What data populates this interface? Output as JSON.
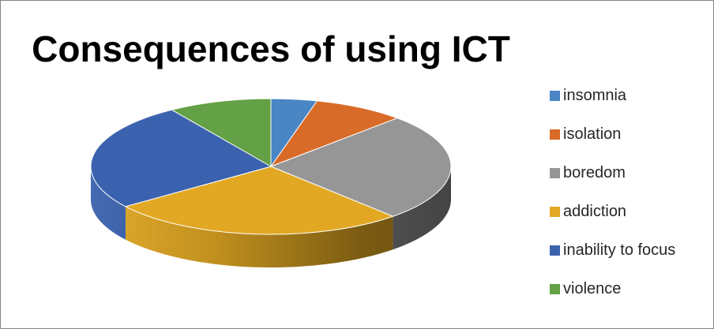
{
  "chart_data": {
    "type": "pie",
    "title": "Consequences of using ICT",
    "style": "3d",
    "legend_position": "right",
    "categories": [
      "insomnia",
      "isolation",
      "boredom",
      "addiction",
      "inability to focus",
      "violence"
    ],
    "values": [
      4,
      8,
      25,
      26,
      25,
      9
    ],
    "colors": [
      "#4a85c4",
      "#d86b27",
      "#969696",
      "#e2a823",
      "#3b62ae",
      "#63a046"
    ]
  }
}
